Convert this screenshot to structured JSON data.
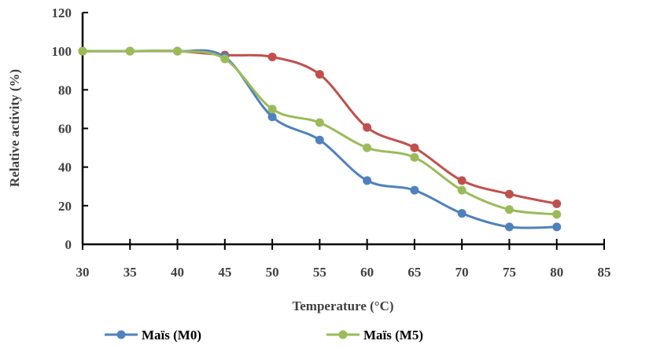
{
  "chart_data": {
    "type": "line",
    "title": "",
    "xlabel": "Temperature  (°C)",
    "ylabel": "Relative activity  (%)",
    "xlim": [
      30,
      85
    ],
    "ylim": [
      0,
      120
    ],
    "x_ticks": [
      "30",
      "35",
      "40",
      "45",
      "50",
      "55",
      "60",
      "65",
      "70",
      "75",
      "80",
      "85"
    ],
    "y_ticks": [
      "0",
      "20",
      "40",
      "60",
      "80",
      "100",
      "120"
    ],
    "grid": false,
    "legend_position": "bottom",
    "x": [
      30,
      35,
      40,
      45,
      50,
      55,
      60,
      65,
      70,
      75,
      80
    ],
    "series": [
      {
        "name": "Maïs (M0)",
        "color": "#4f81bd",
        "values": [
          100,
          100,
          100,
          97,
          66,
          54,
          33,
          28,
          16,
          9,
          9
        ]
      },
      {
        "name": "Maïs (M5)",
        "color": "#9bbb59",
        "values": [
          100,
          100,
          100,
          96,
          70,
          63,
          50,
          45,
          28,
          18,
          15.5
        ]
      },
      {
        "name": "",
        "color": "#c0504d",
        "values": [
          100,
          100,
          100,
          98,
          97,
          88,
          60.5,
          50,
          33,
          26,
          21
        ]
      }
    ]
  }
}
